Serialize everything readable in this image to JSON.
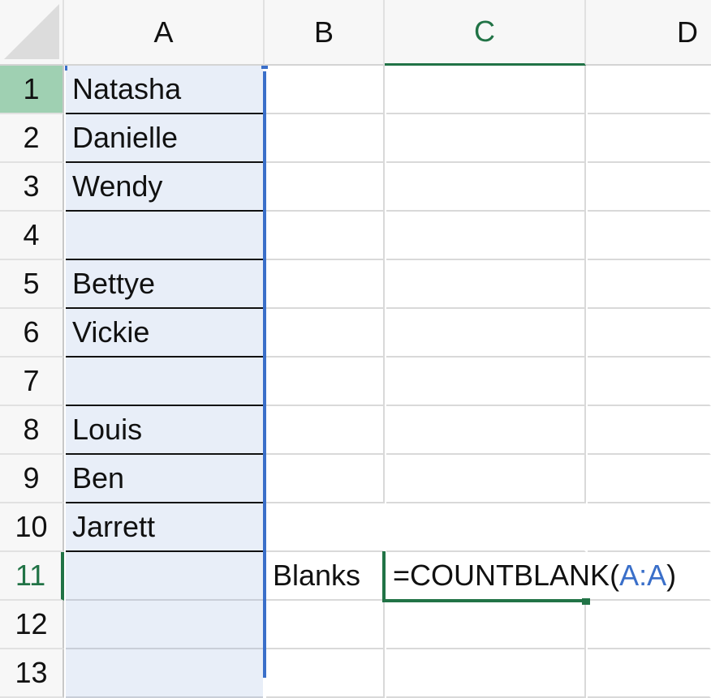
{
  "sheet": {
    "columns": [
      "A",
      "B",
      "C",
      "D"
    ],
    "rows": [
      "1",
      "2",
      "3",
      "4",
      "5",
      "6",
      "7",
      "8",
      "9",
      "10",
      "11",
      "12",
      "13"
    ],
    "column_a_values": [
      "Natasha",
      "Danielle",
      "Wendy",
      "",
      "Bettye",
      "Vickie",
      "",
      "Louis",
      "Ben",
      "Jarrett",
      "",
      "",
      ""
    ],
    "b11_label": "Blanks",
    "c11_formula_prefix": "=COUNTBLANK(",
    "c11_formula_ref": "A:A",
    "c11_formula_suffix": ")",
    "active_cell": "C11",
    "selected_column": "A"
  },
  "colors": {
    "selection_fill": "#e8eef8",
    "selection_border": "#3a6fc9",
    "active_green": "#217346",
    "row_header_highlight": "#9fd0b2",
    "reference_blue": "#3a6fc9"
  }
}
